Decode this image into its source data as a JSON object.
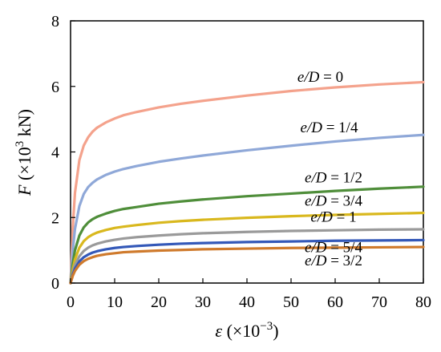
{
  "chart_data": {
    "type": "line",
    "title": "",
    "xlabel": "ε (×10−3)",
    "ylabel": "F (×103 kN)",
    "xlim": [
      0,
      80
    ],
    "ylim": [
      0,
      8
    ],
    "xticks": [
      0,
      10,
      20,
      30,
      40,
      50,
      60,
      70,
      80
    ],
    "yticks": [
      0,
      2,
      4,
      6,
      8
    ],
    "grid": false,
    "legend": "none",
    "x": [
      0,
      0.5,
      1,
      2,
      3,
      4,
      5,
      6,
      8,
      10,
      12,
      15,
      20,
      25,
      30,
      40,
      50,
      60,
      70,
      80
    ],
    "series": [
      {
        "name": "e/D = 0",
        "color": "#f4a28c",
        "values": [
          0,
          1.7,
          2.75,
          3.75,
          4.2,
          4.45,
          4.62,
          4.74,
          4.9,
          5.02,
          5.12,
          5.22,
          5.36,
          5.47,
          5.56,
          5.72,
          5.86,
          5.97,
          6.06,
          6.13
        ]
      },
      {
        "name": "e/D = 1/4",
        "color": "#8fa8d8",
        "values": [
          0,
          1.0,
          1.65,
          2.35,
          2.72,
          2.93,
          3.06,
          3.16,
          3.3,
          3.4,
          3.48,
          3.57,
          3.7,
          3.8,
          3.89,
          4.05,
          4.19,
          4.32,
          4.43,
          4.52
        ]
      },
      {
        "name": "e/D = 1/2",
        "color": "#4f8e3a",
        "values": [
          0,
          0.6,
          1.0,
          1.45,
          1.7,
          1.85,
          1.95,
          2.02,
          2.12,
          2.2,
          2.26,
          2.32,
          2.42,
          2.49,
          2.55,
          2.65,
          2.73,
          2.81,
          2.88,
          2.94
        ]
      },
      {
        "name": "e/D = 3/4",
        "color": "#d9b81e",
        "values": [
          0,
          0.42,
          0.72,
          1.08,
          1.28,
          1.4,
          1.48,
          1.54,
          1.62,
          1.68,
          1.72,
          1.77,
          1.84,
          1.89,
          1.93,
          1.99,
          2.04,
          2.08,
          2.11,
          2.14
        ]
      },
      {
        "name": "e/D = 1",
        "color": "#9a9a9a",
        "values": [
          0,
          0.32,
          0.55,
          0.82,
          0.98,
          1.08,
          1.15,
          1.2,
          1.27,
          1.32,
          1.36,
          1.4,
          1.45,
          1.49,
          1.52,
          1.56,
          1.59,
          1.61,
          1.63,
          1.64
        ]
      },
      {
        "name": "e/D = 5/4",
        "color": "#3358b8",
        "values": [
          0,
          0.26,
          0.44,
          0.66,
          0.79,
          0.87,
          0.93,
          0.97,
          1.03,
          1.07,
          1.1,
          1.13,
          1.17,
          1.2,
          1.22,
          1.25,
          1.27,
          1.29,
          1.3,
          1.31
        ]
      },
      {
        "name": "e/D = 3/2",
        "color": "#cf7a2c",
        "values": [
          0,
          0.22,
          0.37,
          0.56,
          0.67,
          0.74,
          0.79,
          0.83,
          0.88,
          0.91,
          0.94,
          0.96,
          0.99,
          1.01,
          1.03,
          1.05,
          1.07,
          1.08,
          1.09,
          1.1
        ]
      }
    ]
  }
}
